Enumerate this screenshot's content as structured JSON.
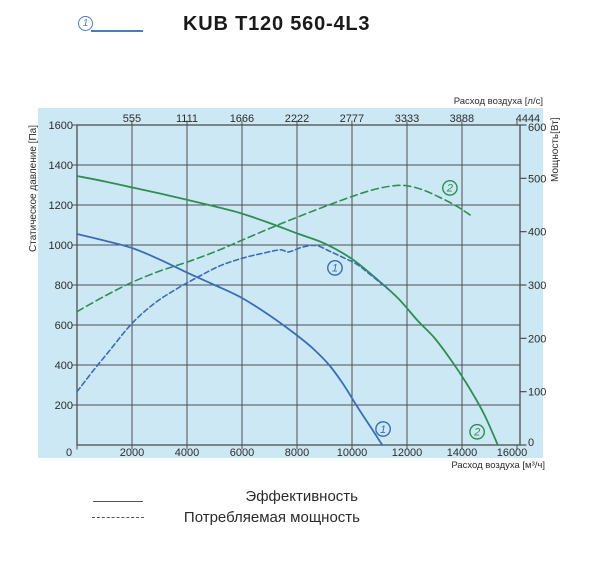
{
  "header": {
    "marker": "1",
    "title": "KUB T120 560-4L3"
  },
  "colors": {
    "chart_background": "#cde8f5",
    "grid": "#4e4e4e",
    "curve_blue": "#3a6db8",
    "curve_green": "#2e8f50",
    "header_accent": "#4a7dc0",
    "legend_line": "#555555",
    "text": "#2d2d2d"
  },
  "chart_data": {
    "type": "line",
    "x_axis_bottom": {
      "label": "Расход воздуха [м³/ч]",
      "ticks": [
        0,
        2000,
        4000,
        6000,
        8000,
        10000,
        12000,
        14000,
        16000
      ],
      "range": [
        0,
        16100
      ]
    },
    "x_axis_top": {
      "label": "Расход воздуха [л/с]",
      "ticks": [
        555,
        1111,
        1666,
        2222,
        2777,
        3333,
        3888,
        4444
      ]
    },
    "y_axis_left": {
      "label": "Статическое давление [Па]",
      "ticks": [
        200,
        400,
        600,
        800,
        1000,
        1200,
        1400,
        1600
      ],
      "range": [
        0,
        1600
      ]
    },
    "y_axis_right": {
      "label": "Мощность[Вт]",
      "ticks": [
        0,
        100,
        200,
        300,
        400,
        500,
        600
      ],
      "range": [
        0,
        600
      ]
    },
    "grid": {
      "x_values": [
        2000,
        4000,
        6000,
        8000,
        10000,
        12000,
        14000
      ],
      "y_values_pa": [
        200,
        400,
        600,
        800,
        1000,
        1200,
        1400
      ]
    },
    "series": [
      {
        "id": "pressure-1",
        "curve_number": "1",
        "quantity": "Эффективность",
        "axis": "left",
        "style": "solid",
        "color": "#3a6db8",
        "points": [
          [
            0,
            1055
          ],
          [
            1000,
            1022
          ],
          [
            2000,
            985
          ],
          [
            3000,
            928
          ],
          [
            4000,
            862
          ],
          [
            5000,
            800
          ],
          [
            6000,
            735
          ],
          [
            7000,
            648
          ],
          [
            8000,
            548
          ],
          [
            8600,
            480
          ],
          [
            9200,
            395
          ],
          [
            9700,
            300
          ],
          [
            10200,
            190
          ],
          [
            10700,
            85
          ],
          [
            11100,
            0
          ]
        ]
      },
      {
        "id": "pressure-2",
        "curve_number": "2",
        "quantity": "Эффективность",
        "axis": "left",
        "style": "solid",
        "color": "#2e8f50",
        "points": [
          [
            0,
            1345
          ],
          [
            1000,
            1318
          ],
          [
            2000,
            1288
          ],
          [
            3000,
            1258
          ],
          [
            4000,
            1226
          ],
          [
            5000,
            1193
          ],
          [
            6000,
            1157
          ],
          [
            7000,
            1110
          ],
          [
            8000,
            1058
          ],
          [
            9000,
            1008
          ],
          [
            10000,
            930
          ],
          [
            11000,
            818
          ],
          [
            11700,
            730
          ],
          [
            12400,
            620
          ],
          [
            13000,
            535
          ],
          [
            13600,
            425
          ],
          [
            14200,
            300
          ],
          [
            14800,
            155
          ],
          [
            15300,
            0
          ]
        ]
      },
      {
        "id": "power-1",
        "curve_number": "1",
        "quantity": "Потребляемая мощность",
        "axis": "right",
        "style": "dashed",
        "color": "#3a6db8",
        "points": [
          [
            0,
            100
          ],
          [
            600,
            140
          ],
          [
            1200,
            178
          ],
          [
            2000,
            228
          ],
          [
            2800,
            265
          ],
          [
            3600,
            292
          ],
          [
            4400,
            315
          ],
          [
            5200,
            336
          ],
          [
            6000,
            350
          ],
          [
            6800,
            360
          ],
          [
            7400,
            366
          ],
          [
            7700,
            362
          ],
          [
            8200,
            371
          ],
          [
            8700,
            374
          ],
          [
            9200,
            363
          ],
          [
            9700,
            351
          ],
          [
            10200,
            338
          ],
          [
            10700,
            318
          ],
          [
            11300,
            293
          ]
        ]
      },
      {
        "id": "power-2",
        "curve_number": "2",
        "quantity": "Потребляемая мощность",
        "axis": "right",
        "style": "dashed",
        "color": "#2e8f50",
        "points": [
          [
            0,
            250
          ],
          [
            1000,
            279
          ],
          [
            2000,
            305
          ],
          [
            3000,
            326
          ],
          [
            4000,
            343
          ],
          [
            5000,
            362
          ],
          [
            6000,
            384
          ],
          [
            7000,
            406
          ],
          [
            8000,
            427
          ],
          [
            9000,
            447
          ],
          [
            10000,
            466
          ],
          [
            10800,
            479
          ],
          [
            11500,
            486
          ],
          [
            12000,
            486
          ],
          [
            12600,
            478
          ],
          [
            13200,
            464
          ],
          [
            13800,
            448
          ],
          [
            14300,
            431
          ]
        ]
      }
    ],
    "markers": [
      {
        "label": "1",
        "axis": "right",
        "flow": 9380,
        "value": 332,
        "color": "#3a6db8"
      },
      {
        "label": "2",
        "axis": "right",
        "flow": 13560,
        "value": 482,
        "color": "#2e8f50"
      },
      {
        "label": "1",
        "axis": "left",
        "flow": 11130,
        "value": 80,
        "color": "#3a6db8"
      },
      {
        "label": "2",
        "axis": "left",
        "flow": 14550,
        "value": 66,
        "color": "#2e8f50"
      }
    ]
  },
  "legend": [
    {
      "style": "solid",
      "label": "Эффективность"
    },
    {
      "style": "dashed",
      "label": "Потребляемая мощность"
    }
  ]
}
